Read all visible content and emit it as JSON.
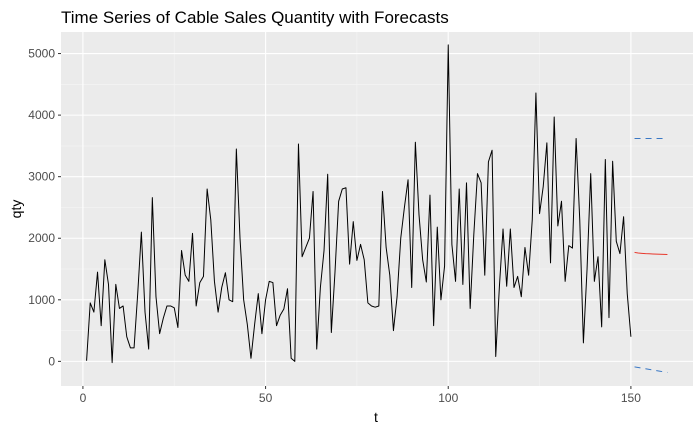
{
  "chart_data": {
    "type": "line",
    "title": "Time Series of Cable Sales Quantity with Forecasts",
    "xlabel": "t",
    "ylabel": "qty",
    "xlim": [
      -6,
      167
    ],
    "ylim": [
      -400,
      5350
    ],
    "x_ticks": [
      0,
      50,
      100,
      150
    ],
    "x_tick_labels": [
      "0",
      "50",
      "100",
      "150"
    ],
    "y_ticks": [
      0,
      1000,
      2000,
      3000,
      4000,
      5000
    ],
    "y_tick_labels": [
      "0",
      "1000",
      "2000",
      "3000",
      "4000",
      "5000"
    ],
    "grid": true,
    "legend": "none",
    "background": "#ebebeb",
    "series": [
      {
        "role": "observed",
        "color": "#000000",
        "x": [
          1,
          2,
          3,
          4,
          5,
          6,
          7,
          8,
          9,
          10,
          11,
          12,
          13,
          14,
          15,
          16,
          17,
          18,
          19,
          20,
          21,
          22,
          23,
          24,
          25,
          26,
          27,
          28,
          29,
          30,
          31,
          32,
          33,
          34,
          35,
          36,
          37,
          38,
          39,
          40,
          41,
          42,
          43,
          44,
          45,
          46,
          47,
          48,
          49,
          50,
          51,
          52,
          53,
          54,
          55,
          56,
          57,
          58,
          59,
          60,
          61,
          62,
          63,
          64,
          65,
          66,
          67,
          68,
          69,
          70,
          71,
          72,
          73,
          74,
          75,
          76,
          77,
          78,
          79,
          80,
          81,
          82,
          83,
          84,
          85,
          86,
          87,
          88,
          89,
          90,
          91,
          92,
          93,
          94,
          95,
          96,
          97,
          98,
          99,
          100,
          101,
          102,
          103,
          104,
          105,
          106,
          107,
          108,
          109,
          110,
          111,
          112,
          113,
          114,
          115,
          116,
          117,
          118,
          119,
          120,
          121,
          122,
          123,
          124,
          125,
          126,
          127,
          128,
          129,
          130,
          131,
          132,
          133,
          134,
          135,
          136,
          137,
          138,
          139,
          140,
          141,
          142,
          143,
          144,
          145,
          146,
          147,
          148,
          149,
          150
        ],
        "values": [
          10,
          950,
          800,
          1450,
          580,
          1650,
          1250,
          -20,
          1250,
          860,
          900,
          400,
          220,
          220,
          1100,
          2100,
          800,
          200,
          2660,
          1050,
          450,
          700,
          900,
          900,
          870,
          550,
          1800,
          1400,
          1300,
          2080,
          900,
          1280,
          1380,
          2800,
          2300,
          1300,
          800,
          1200,
          1440,
          1000,
          970,
          3450,
          2000,
          1000,
          600,
          50,
          600,
          1100,
          450,
          1000,
          1300,
          1280,
          580,
          750,
          850,
          1180,
          50,
          0,
          3530,
          1700,
          1850,
          2000,
          2760,
          200,
          1200,
          1800,
          3040,
          470,
          1450,
          2600,
          2800,
          2820,
          1580,
          2270,
          1640,
          1900,
          1650,
          950,
          900,
          880,
          900,
          2760,
          1850,
          1400,
          500,
          1050,
          2000,
          2500,
          2950,
          1200,
          3560,
          2380,
          1650,
          1290,
          2700,
          580,
          2180,
          1000,
          1550,
          5140,
          1900,
          1300,
          2800,
          1250,
          2900,
          860,
          2060,
          3050,
          2900,
          1400,
          3240,
          3430,
          80,
          1210,
          2150,
          1220,
          2150,
          1200,
          1380,
          1050,
          1850,
          1400,
          2300,
          4360,
          2400,
          2840,
          3550,
          1600,
          3970,
          2200,
          2600,
          1300,
          1880,
          1840,
          3620,
          2300,
          300,
          1500,
          3050,
          1300,
          1700,
          560,
          3280,
          710,
          3250,
          1950,
          1750,
          2350,
          1100,
          400
        ]
      },
      {
        "role": "forecast",
        "color": "#e8382c",
        "x": [
          151,
          152,
          153,
          154,
          155,
          156,
          157,
          158,
          159,
          160
        ],
        "values": [
          1770,
          1760,
          1755,
          1750,
          1748,
          1745,
          1742,
          1740,
          1738,
          1735
        ]
      },
      {
        "role": "upper-bound",
        "color": "#3a78c5",
        "dash": "6,5",
        "x": [
          151,
          152,
          153,
          154,
          155,
          156,
          157,
          158,
          159,
          160
        ],
        "values": [
          3620,
          3620,
          3620,
          3620,
          3620,
          3620,
          3620,
          3620,
          3620,
          3620
        ]
      },
      {
        "role": "lower-bound",
        "color": "#3a78c5",
        "dash": "6,5",
        "x": [
          151,
          152,
          153,
          154,
          155,
          156,
          157,
          158,
          159,
          160
        ],
        "values": [
          -90,
          -100,
          -110,
          -120,
          -130,
          -140,
          -150,
          -160,
          -170,
          -180
        ]
      }
    ]
  }
}
